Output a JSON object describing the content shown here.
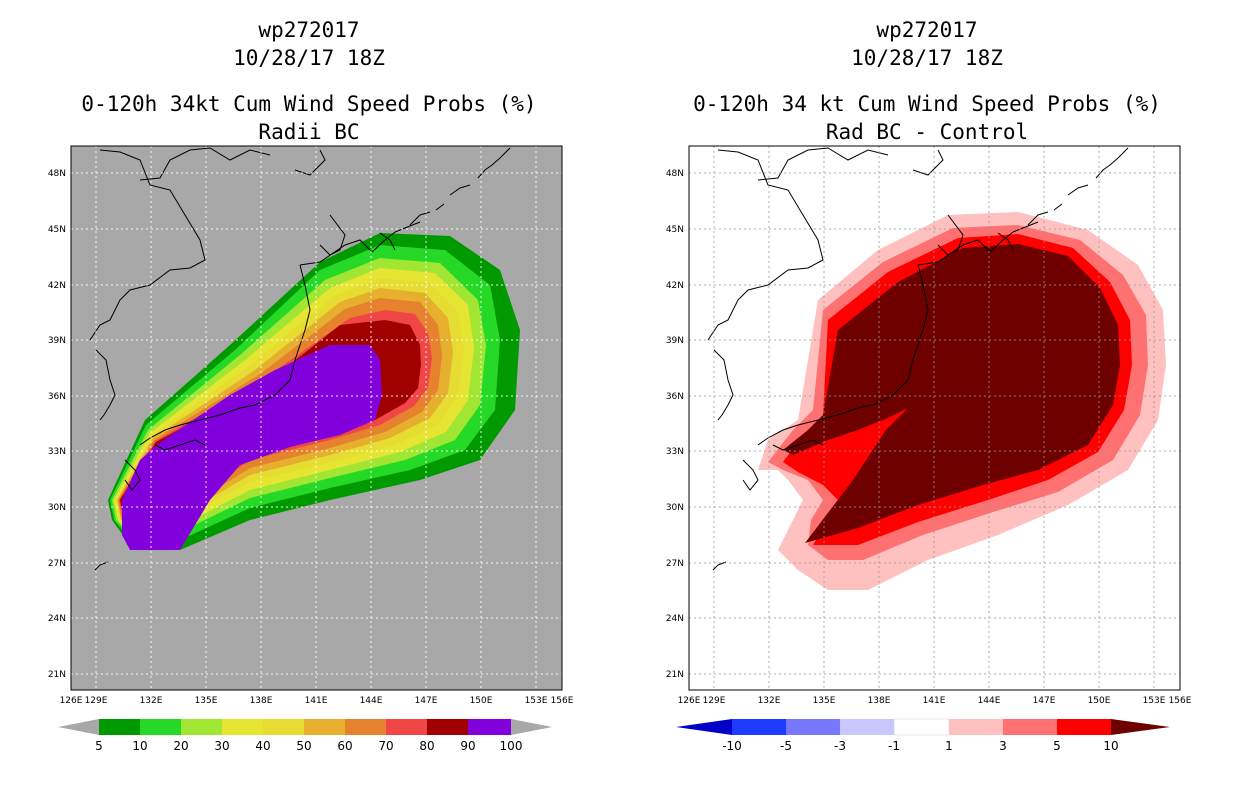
{
  "left": {
    "title_line1": "wp272017",
    "title_line2": "10/28/17 18Z",
    "title_line3": "0-120h 34kt Cum Wind Speed Probs (%)",
    "title_line4": "Radii BC",
    "lat_labels": [
      "48N",
      "45N",
      "42N",
      "39N",
      "36N",
      "33N",
      "30N",
      "27N",
      "24N",
      "21N"
    ],
    "lon_labels": [
      "126E",
      "129E",
      "132E",
      "135E",
      "138E",
      "141E",
      "144E",
      "147E",
      "150E",
      "153E",
      "156E"
    ],
    "colorbar": {
      "colors": [
        "#009a00",
        "#27d927",
        "#a0e632",
        "#e6e632",
        "#e6dc32",
        "#e6af2d",
        "#e6822d",
        "#f04646",
        "#a00000",
        "#8200dc"
      ],
      "labels": [
        "5",
        "10",
        "20",
        "30",
        "40",
        "50",
        "60",
        "70",
        "80",
        "90",
        "100"
      ]
    }
  },
  "right": {
    "title_line1": "wp272017",
    "title_line2": "10/28/17 18Z",
    "title_line3": "0-120h 34 kt Cum Wind Speed Probs (%)",
    "title_line4": "Rad BC - Control",
    "lat_labels": [
      "48N",
      "45N",
      "42N",
      "39N",
      "36N",
      "33N",
      "30N",
      "27N",
      "24N",
      "21N"
    ],
    "lon_labels": [
      "126E",
      "129E",
      "132E",
      "135E",
      "138E",
      "141E",
      "144E",
      "147E",
      "150E",
      "153E",
      "156E"
    ],
    "colorbar": {
      "colors": [
        "#0000c8",
        "#1e3cff",
        "#7878ff",
        "#c8c8ff",
        "#ffffff",
        "#ffc0c0",
        "#ff7070",
        "#ff0000",
        "#6e0000"
      ],
      "labels": [
        "-10",
        "-5",
        "-3",
        "-1",
        "1",
        "3",
        "5",
        "10"
      ]
    }
  }
}
